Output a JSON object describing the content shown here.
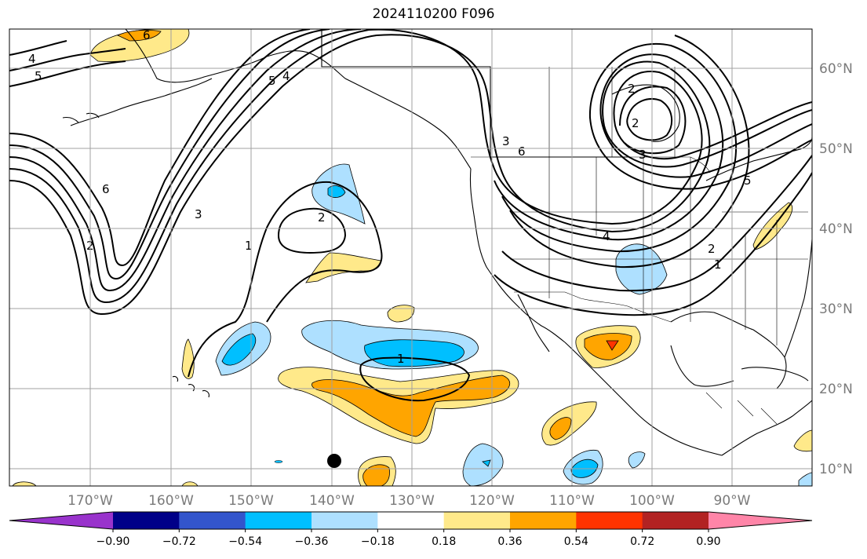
{
  "title": "2024110200 F096",
  "longitude_labels": [
    "170°W",
    "160°W",
    "150°W",
    "140°W",
    "130°W",
    "120°W",
    "110°W",
    "100°W",
    "90°W"
  ],
  "latitude_labels": [
    "10°N",
    "20°N",
    "30°N",
    "40°N",
    "50°N",
    "60°N"
  ],
  "colorbar": {
    "ticks": [
      "−0.90",
      "−0.72",
      "−0.54",
      "−0.36",
      "−0.18",
      "0.18",
      "0.36",
      "0.54",
      "0.72",
      "0.90"
    ],
    "colors": [
      "#9933cc",
      "#000088",
      "#3355cc",
      "#00bfff",
      "#aee0ff",
      "#ffffff",
      "#ffe98a",
      "#ffa500",
      "#ff3300",
      "#b22222",
      "#ff85a8"
    ]
  },
  "contour_labels": [
    "4",
    "5",
    "6",
    "5",
    "4",
    "6",
    "2",
    "3",
    "1",
    "2",
    "1",
    "3",
    "6",
    "2",
    "3",
    "2",
    "4",
    "2",
    "1",
    "5"
  ],
  "colors": {
    "light_blue": "#aee0ff",
    "blue": "#00bfff",
    "yellow": "#ffe98a",
    "orange": "#ffa500",
    "red": "#ff3300",
    "grid": "#a0a0a0",
    "axis_text": "#7a7a7a"
  },
  "marker": "storm-position-dot"
}
